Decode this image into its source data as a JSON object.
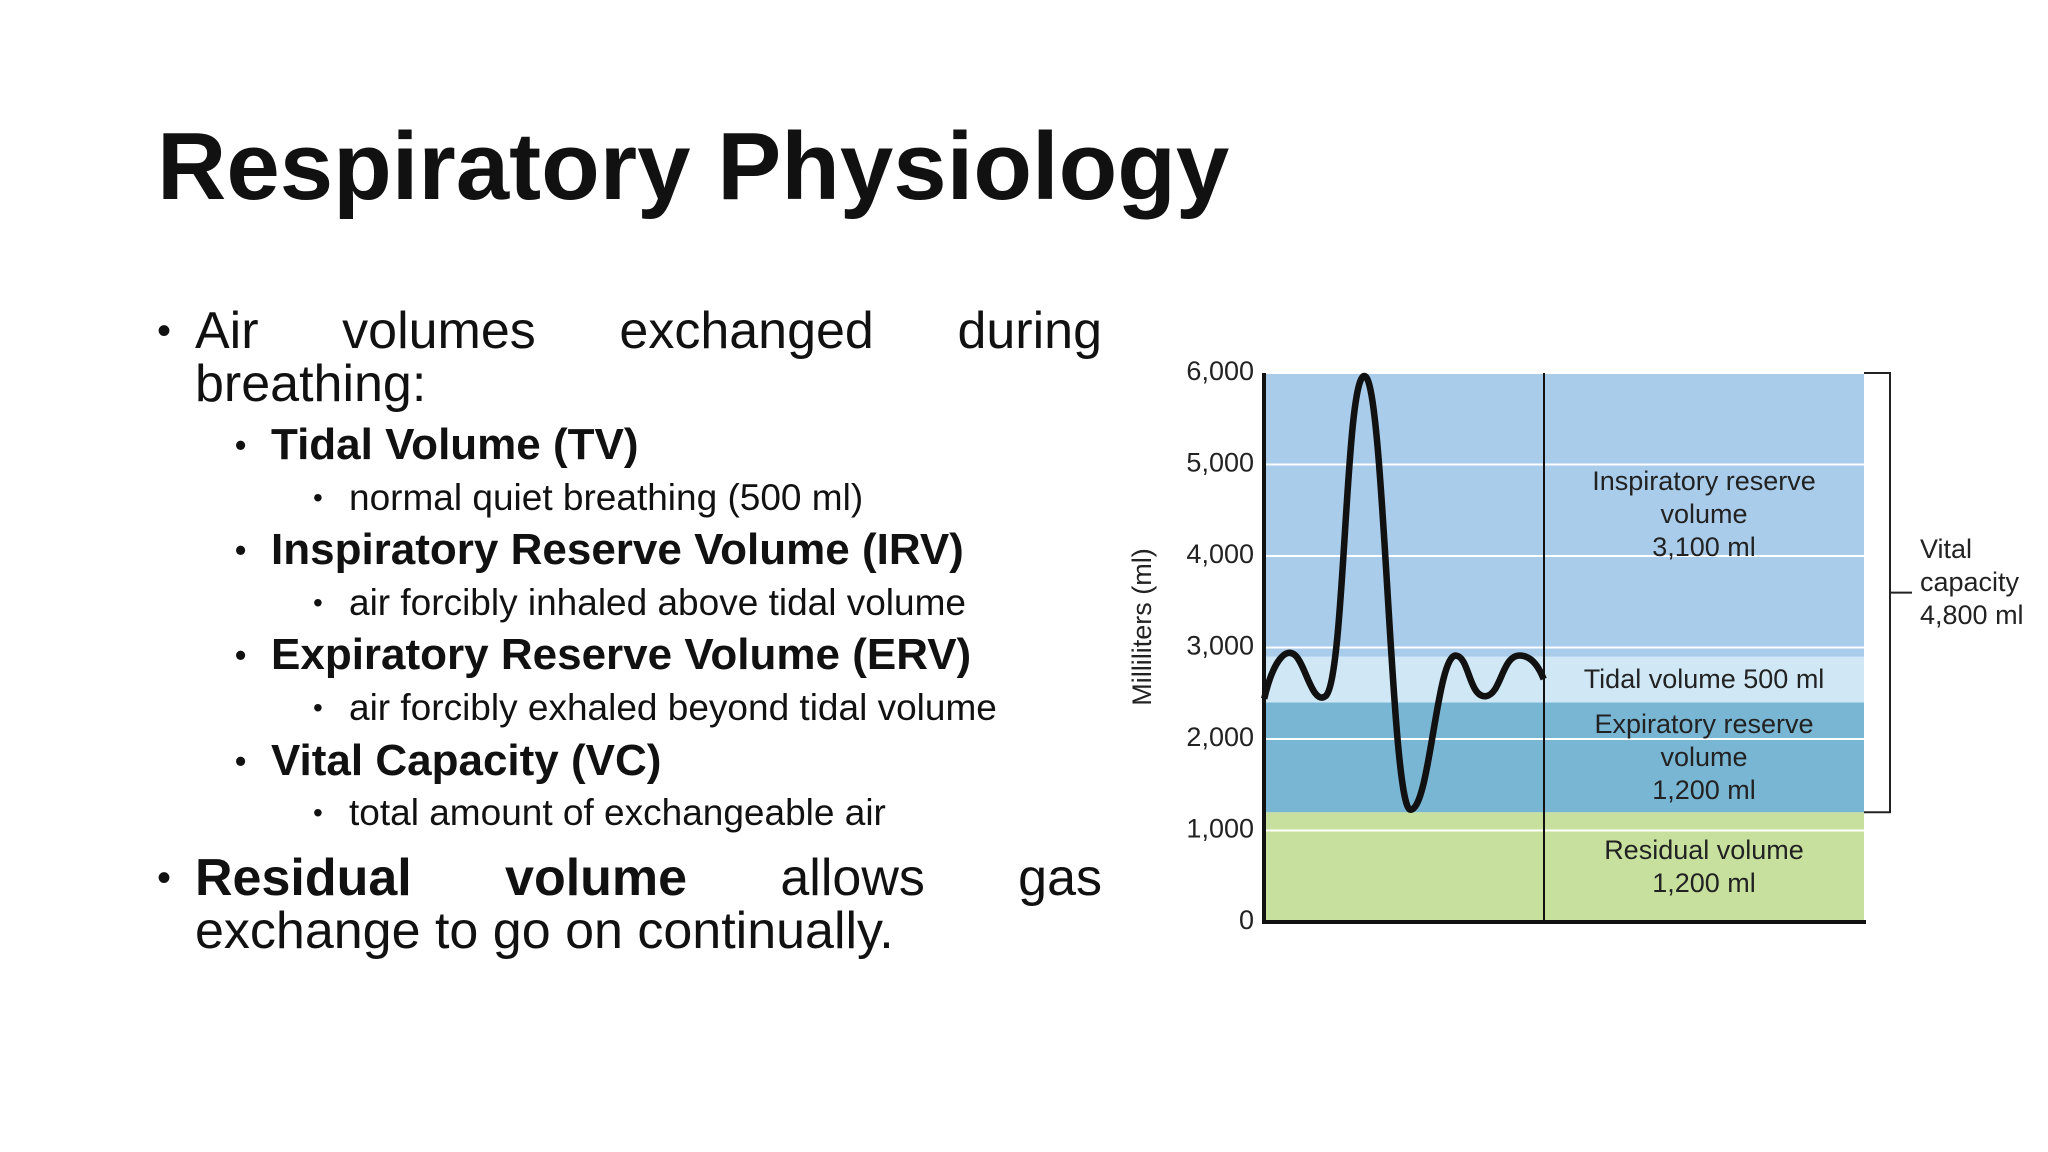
{
  "title": "Respiratory Physiology",
  "bullets": [
    {
      "parts": [
        {
          "text": "Air volumes exchanged during breathing:",
          "bold": false
        }
      ],
      "children": [
        {
          "text": "Tidal Volume (TV)",
          "children": [
            {
              "text": "normal quiet breathing (500 ml)"
            }
          ]
        },
        {
          "text": "Inspiratory Reserve Volume (IRV)",
          "children": [
            {
              "text": "air forcibly inhaled above tidal volume"
            }
          ]
        },
        {
          "text": "Expiratory Reserve Volume (ERV)",
          "children": [
            {
              "text": "air forcibly exhaled beyond tidal volume"
            }
          ]
        },
        {
          "text": "Vital Capacity (VC)",
          "children": [
            {
              "text": "total amount of exchangeable air"
            }
          ]
        }
      ]
    },
    {
      "parts": [
        {
          "text": "Residual volume",
          "bold": true
        },
        {
          "text": " allows gas exchange to go on continually.",
          "bold": false
        }
      ],
      "children": []
    }
  ],
  "chart_data": {
    "type": "stacked-band",
    "y_label": "Milliliters (ml)",
    "ylim": [
      0,
      6000
    ],
    "yticks": [
      0,
      {
        "value": 1000,
        "label": "1,000"
      },
      {
        "value": 2000,
        "label": "2,000"
      },
      {
        "value": 3000,
        "label": "3,000"
      },
      {
        "value": 4000,
        "label": "4,000"
      },
      {
        "value": 5000,
        "label": "5,000"
      },
      {
        "value": 6000,
        "label": "6,000"
      }
    ],
    "grid": true,
    "series": [
      {
        "name": "Residual volume",
        "values": [
          1200
        ],
        "value_labels": [
          "1,200 ml"
        ],
        "color": "#c8e09e"
      },
      {
        "name": "Expiratory reserve volume",
        "values": [
          1200
        ],
        "value_labels": [
          "1,200 ml"
        ],
        "color": "#79b6d4"
      },
      {
        "name": "Tidal volume",
        "values": [
          500
        ],
        "value_labels": [
          "500 ml"
        ],
        "color": "#d0e8f6"
      },
      {
        "name": "Inspiratory reserve volume",
        "values": [
          3100
        ],
        "value_labels": [
          "3,100 ml"
        ],
        "color": "#a9cceb"
      }
    ],
    "bracket": {
      "label": "Vital capacity",
      "value": 4800,
      "value_label": "4,800 ml"
    }
  }
}
